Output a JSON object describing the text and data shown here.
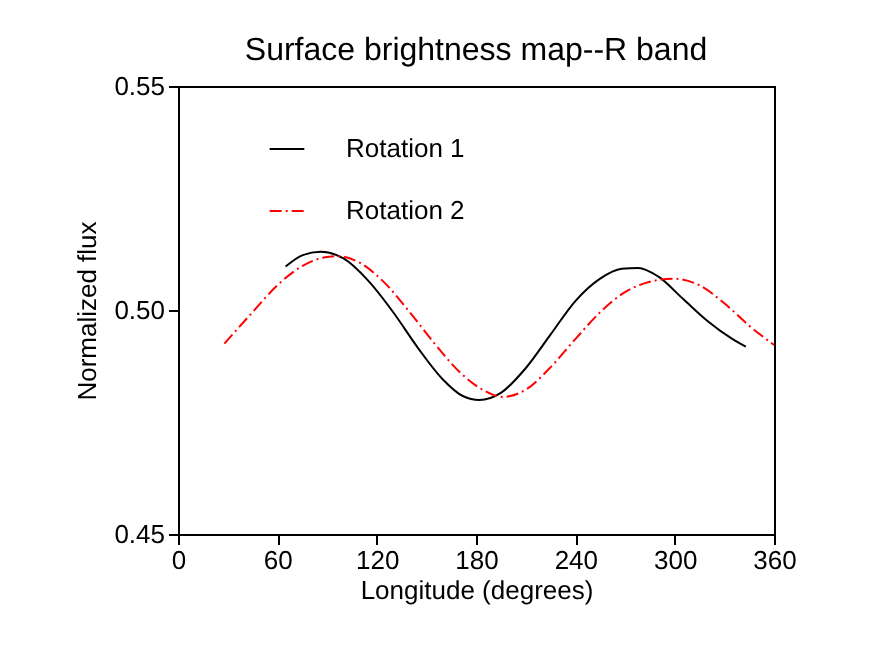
{
  "chart_data": {
    "type": "line",
    "title": "Surface brightness map--R band",
    "xlabel": "Longitude (degrees)",
    "ylabel": "Normalized flux",
    "xlim": [
      0,
      360
    ],
    "xticks": [
      0,
      60,
      120,
      180,
      240,
      300,
      360
    ],
    "ylim": [
      0.45,
      0.55
    ],
    "yticks": [
      {
        "value": 0.45,
        "label": "0.45"
      },
      {
        "value": 0.5,
        "label": "0.50"
      },
      {
        "value": 0.55,
        "label": "0.55"
      }
    ],
    "grid": false,
    "legend": "top left",
    "marker": "none",
    "series": [
      {
        "name": "Rotation 1",
        "color": "#000000",
        "line_style": "solid",
        "x": [
          65,
          75,
          86,
          100,
          115,
          130,
          145,
          160,
          172,
          182,
          195,
          210,
          225,
          240,
          255,
          268,
          278,
          290,
          305,
          320,
          335,
          343
        ],
        "values": [
          0.5097,
          0.5122,
          0.513,
          0.5115,
          0.5065,
          0.4995,
          0.4915,
          0.4845,
          0.4808,
          0.4799,
          0.4815,
          0.487,
          0.4945,
          0.502,
          0.507,
          0.5092,
          0.5094,
          0.5075,
          0.5025,
          0.4975,
          0.4935,
          0.4918
        ]
      },
      {
        "name": "Rotation 2",
        "color": "#ff0000",
        "line_style": "dashed",
        "x": [
          28,
          45,
          60,
          75,
          88,
          97,
          110,
          125,
          140,
          155,
          170,
          185,
          196,
          210,
          225,
          240,
          255,
          270,
          285,
          299,
          315,
          330,
          345,
          360
        ],
        "values": [
          0.4925,
          0.4995,
          0.5055,
          0.5098,
          0.5117,
          0.512,
          0.5105,
          0.506,
          0.4995,
          0.4925,
          0.4862,
          0.482,
          0.4806,
          0.4822,
          0.4872,
          0.4935,
          0.4995,
          0.504,
          0.5063,
          0.507,
          0.5055,
          0.5015,
          0.4965,
          0.4922
        ]
      }
    ]
  }
}
